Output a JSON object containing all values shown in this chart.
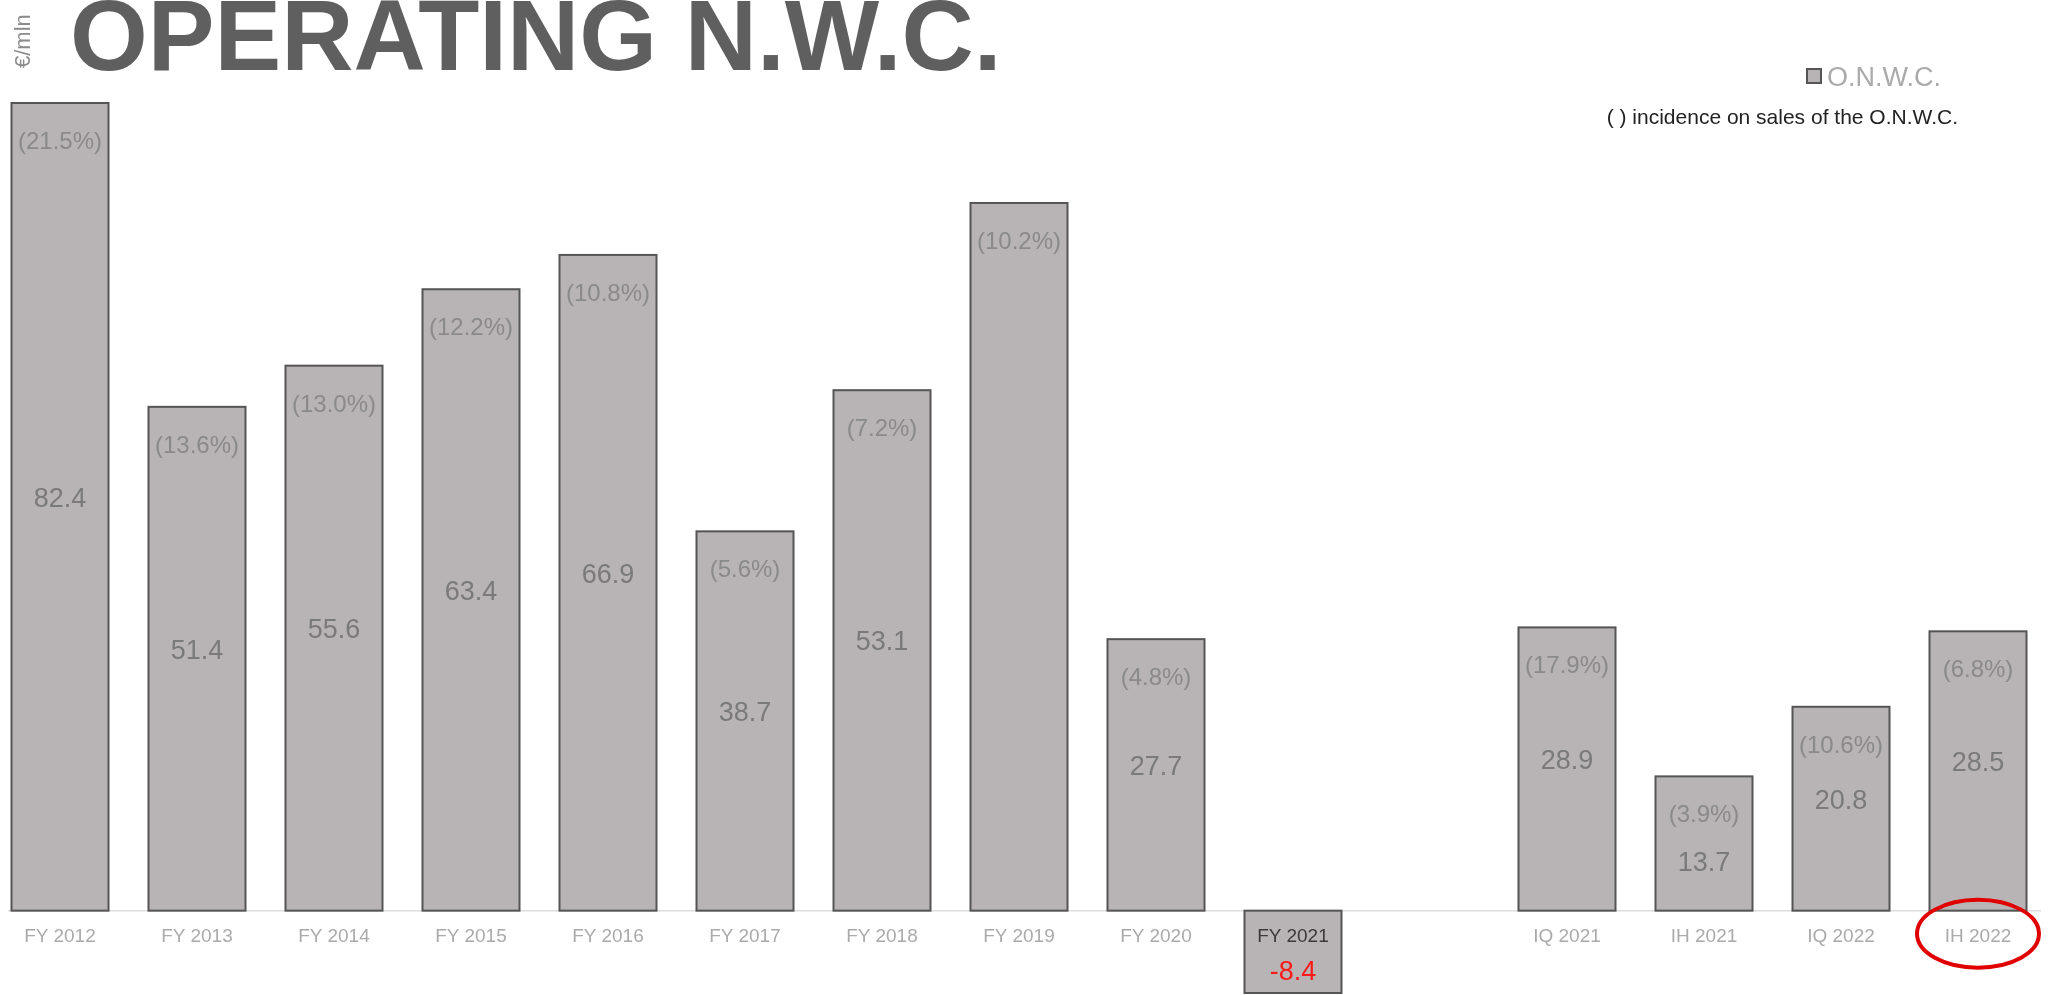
{
  "chart_data": {
    "type": "bar",
    "title": "OPERATING N.W.C.",
    "ylabel": "€/mln",
    "categories": [
      "FY 2012",
      "FY 2013",
      "FY 2014",
      "FY 2015",
      "FY 2016",
      "FY 2017",
      "FY 2018",
      "FY 2019",
      "FY 2020",
      "FY 2021",
      null,
      "IQ 2021",
      "IH 2021",
      "IQ 2022",
      "IH 2022"
    ],
    "series": [
      {
        "name": "O.N.W.C.",
        "color": "#b8b3b4",
        "values": [
          82.4,
          51.4,
          55.6,
          63.4,
          66.9,
          38.7,
          53.1,
          72.2,
          27.7,
          -8.4,
          null,
          28.9,
          13.7,
          20.8,
          28.5
        ],
        "value_labels": [
          "82.4",
          "51.4",
          "55.6",
          "63.4",
          "66.9",
          "38.7",
          "53.1",
          null,
          "27.7",
          "-8.4",
          null,
          "28.9",
          "13.7",
          "20.8",
          "28.5"
        ]
      }
    ],
    "legend": "top right",
    "annotations": [
      "( ) incidence on sales of the O.N.W.C.",
      {
        "text": "(21.5%)",
        "x": "FY 2012",
        "y": 82.4
      },
      {
        "text": "(13.6%)",
        "x": "FY 2013",
        "y": 51.4
      },
      {
        "text": "(13.0%)",
        "x": "FY 2014",
        "y": 55.6
      },
      {
        "text": "(12.2%)",
        "x": "FY 2015",
        "y": 63.4
      },
      {
        "text": "(10.8%)",
        "x": "FY 2016",
        "y": 66.9
      },
      {
        "text": "(5.6%)",
        "x": "FY 2017",
        "y": 38.7
      },
      {
        "text": "(7.2%)",
        "x": "FY 2018",
        "y": 53.1
      },
      {
        "text": "(10.2%)",
        "x": "FY 2019",
        "y": 72.2
      },
      {
        "text": "(4.8%)",
        "x": "FY 2020",
        "y": 27.7
      },
      {
        "text": "(17.9%)",
        "x": "IQ 2021",
        "y": 28.9
      },
      {
        "text": "(3.9%)",
        "x": "IH 2021",
        "y": 13.7
      },
      {
        "text": "(10.6%)",
        "x": "IQ 2022",
        "y": 20.8
      },
      {
        "text": "(6.8%)",
        "x": "IH 2022",
        "y": 28.5
      }
    ]
  }
}
